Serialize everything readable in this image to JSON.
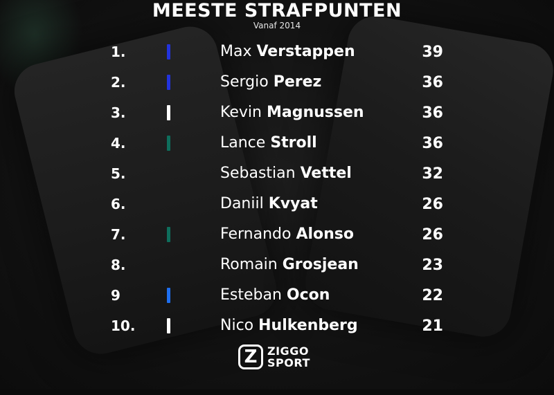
{
  "header": {
    "title": "MEESTE STRAFPUNTEN",
    "subtitle": "Vanaf 2014"
  },
  "rows": [
    {
      "rank": "1.",
      "first": "Max",
      "last": "Verstappen",
      "points": "39",
      "team_color": "#2233dd"
    },
    {
      "rank": "2.",
      "first": "Sergio",
      "last": "Perez",
      "points": "36",
      "team_color": "#2233dd"
    },
    {
      "rank": "3.",
      "first": "Kevin",
      "last": "Magnussen",
      "points": "36",
      "team_color": "#ffffff"
    },
    {
      "rank": "4.",
      "first": "Lance",
      "last": "Stroll",
      "points": "36",
      "team_color": "#0e6e5c"
    },
    {
      "rank": "5.",
      "first": "Sebastian",
      "last": "Vettel",
      "points": "32",
      "team_color": null
    },
    {
      "rank": "6.",
      "first": "Daniil",
      "last": "Kvyat",
      "points": "26",
      "team_color": null
    },
    {
      "rank": "7.",
      "first": "Fernando",
      "last": "Alonso",
      "points": "26",
      "team_color": "#0e6e5c"
    },
    {
      "rank": "8.",
      "first": "Romain",
      "last": "Grosjean",
      "points": "23",
      "team_color": null
    },
    {
      "rank": "9",
      "first": "Esteban",
      "last": "Ocon",
      "points": "22",
      "team_color": "#1e6ff0"
    },
    {
      "rank": "10.",
      "first": "Nico",
      "last": "Hulkenberg",
      "points": "21",
      "team_color": "#ffffff"
    }
  ],
  "logo": {
    "mark": "Z",
    "line1": "ZIGGO",
    "line2": "SPORT"
  }
}
